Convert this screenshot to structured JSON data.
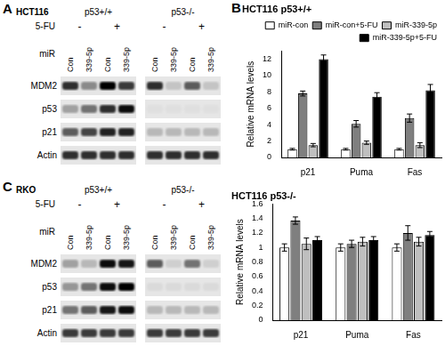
{
  "panel_labels": [
    "A",
    "B",
    "C"
  ],
  "blots": [
    {
      "cell_line": "HCT116",
      "groups": [
        "p53+/+",
        "p53-/-"
      ],
      "treatment_label": "5-FU",
      "treatment": [
        "-",
        "+"
      ],
      "lane_label": "miR",
      "lanes": [
        "Con",
        "339-5p",
        "Con",
        "339-5p"
      ],
      "bands": [
        {
          "name": "MDM2",
          "intensity": [
            0.8,
            0.4,
            1.0,
            0.75,
            0.8,
            0.15,
            0.6,
            0.15
          ]
        },
        {
          "name": "p53",
          "intensity": [
            0.3,
            0.5,
            0.8,
            0.95,
            0.03,
            0.03,
            0.03,
            0.03
          ]
        },
        {
          "name": "p21",
          "intensity": [
            0.6,
            0.7,
            0.85,
            0.85,
            0.2,
            0.2,
            0.2,
            0.2
          ]
        },
        {
          "name": "Actin",
          "intensity": [
            0.8,
            0.8,
            0.8,
            0.8,
            0.8,
            0.8,
            0.8,
            0.8
          ]
        }
      ]
    },
    {
      "cell_line": "RKO",
      "groups": [
        "p53+/+",
        "p53-/-"
      ],
      "treatment_label": "5-FU",
      "treatment": [
        "-",
        "+"
      ],
      "lane_label": "miR",
      "lanes": [
        "Con",
        "339-5p",
        "Con",
        "339-5p"
      ],
      "bands": [
        {
          "name": "MDM2",
          "intensity": [
            0.3,
            0.2,
            0.95,
            0.9,
            0.6,
            0.1,
            0.5,
            0.1
          ]
        },
        {
          "name": "p53",
          "intensity": [
            0.35,
            0.5,
            0.95,
            1.0,
            0.05,
            0.05,
            0.05,
            0.05
          ]
        },
        {
          "name": "p21",
          "intensity": [
            0.5,
            0.6,
            0.9,
            0.95,
            0.2,
            0.2,
            0.2,
            0.2
          ]
        },
        {
          "name": "Actin",
          "intensity": [
            0.75,
            0.75,
            0.75,
            0.75,
            0.75,
            0.75,
            0.75,
            0.75
          ]
        }
      ]
    }
  ],
  "chart_data": [
    {
      "type": "bar",
      "title": "HCT116 p53+/+",
      "y_label": "Relative mRNA levels",
      "categories": [
        "p21",
        "Puma",
        "Fas"
      ],
      "series": [
        {
          "name": "miR-con",
          "color": "#ffffff",
          "values": [
            1.0,
            1.0,
            1.0
          ],
          "errors": [
            0.1,
            0.1,
            0.1
          ]
        },
        {
          "name": "miR-con+5-FU",
          "color": "#7f7f7f",
          "values": [
            7.8,
            4.1,
            4.8
          ],
          "errors": [
            0.3,
            0.4,
            0.5
          ]
        },
        {
          "name": "miR-339-5p",
          "color": "#bfbfbf",
          "values": [
            1.5,
            1.8,
            1.5
          ],
          "errors": [
            0.2,
            0.2,
            0.3
          ]
        },
        {
          "name": "miR-339-5p+5-FU",
          "color": "#000000",
          "values": [
            12.0,
            7.4,
            8.2
          ],
          "errors": [
            0.5,
            0.5,
            0.7
          ]
        }
      ],
      "ylim": [
        0,
        13
      ],
      "yticks": [
        0,
        2,
        4,
        6,
        8,
        10,
        12
      ],
      "grid": false,
      "legend": "top"
    },
    {
      "type": "bar",
      "title": "HCT116 p53-/-",
      "y_label": "Relative mRNA levels",
      "categories": [
        "p21",
        "Puma",
        "Fas"
      ],
      "series": [
        {
          "name": "miR-con",
          "color": "#ffffff",
          "values": [
            1.0,
            1.0,
            1.0
          ],
          "errors": [
            0.05,
            0.05,
            0.05
          ]
        },
        {
          "name": "miR-con+5-FU",
          "color": "#7f7f7f",
          "values": [
            1.37,
            1.05,
            1.2
          ],
          "errors": [
            0.05,
            0.05,
            0.1
          ]
        },
        {
          "name": "miR-339-5p",
          "color": "#bfbfbf",
          "values": [
            1.05,
            1.08,
            1.08
          ],
          "errors": [
            0.08,
            0.06,
            0.06
          ]
        },
        {
          "name": "miR-339-5p+5-FU",
          "color": "#000000",
          "values": [
            1.1,
            1.1,
            1.17
          ],
          "errors": [
            0.05,
            0.05,
            0.05
          ]
        }
      ],
      "ylim": [
        0,
        1.6
      ],
      "yticks": [
        0,
        0.2,
        0.4,
        0.6,
        0.8,
        1,
        1.2,
        1.4,
        1.6
      ],
      "grid": false
    }
  ]
}
